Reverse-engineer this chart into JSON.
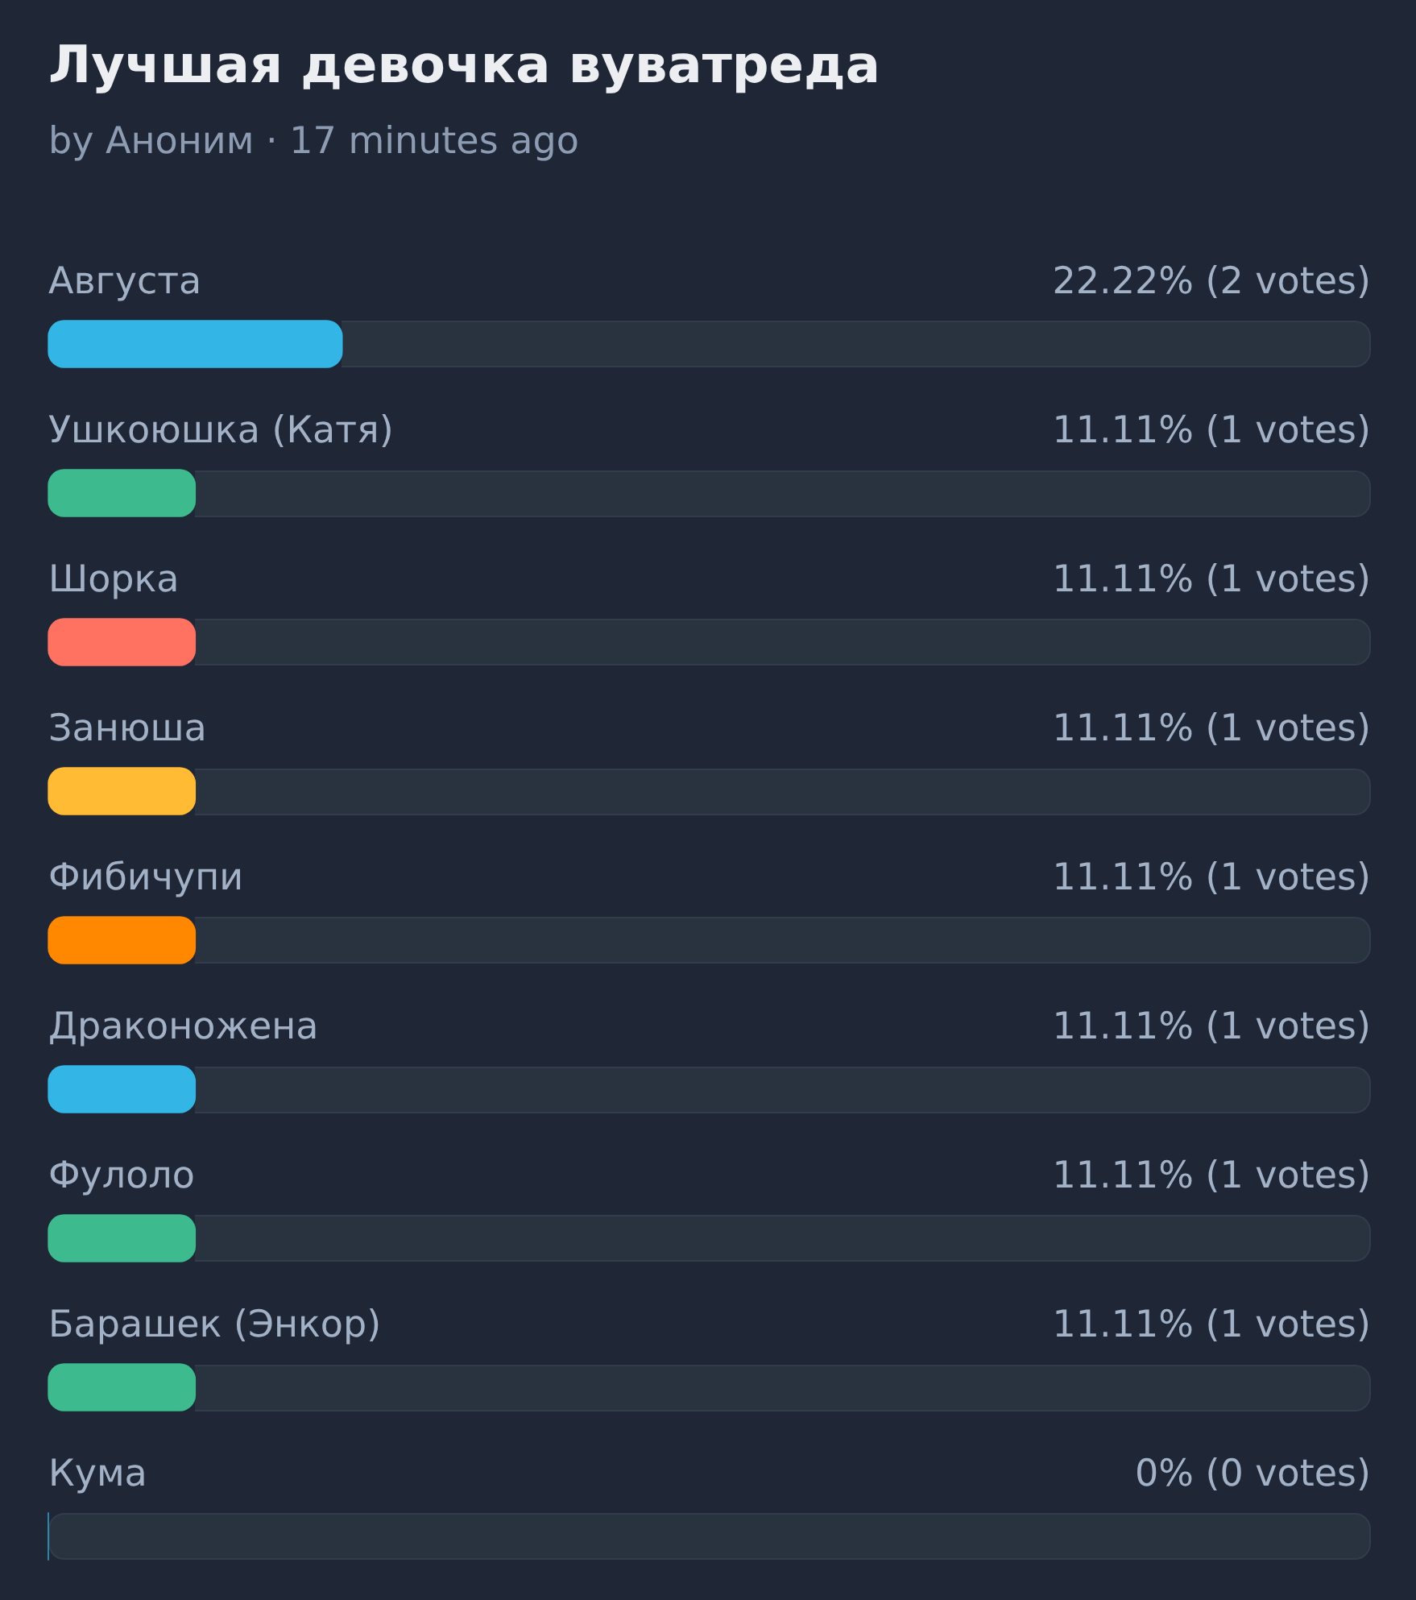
{
  "chart_data": {
    "type": "bar",
    "orientation": "horizontal",
    "title": "Лучшая девочка вуватреда",
    "subtitle": "by Аноним · 17 minutes ago",
    "categories": [
      "Августа",
      "Ушкоюшка (Катя)",
      "Шорка",
      "Занюша",
      "Фибичупи",
      "Драконожена",
      "Фулоло",
      "Барашек (Энкор)",
      "Кума"
    ],
    "values": [
      22.22,
      11.11,
      11.11,
      11.11,
      11.11,
      11.11,
      11.11,
      11.11,
      0
    ],
    "colors": [
      "#33b5e5",
      "#3dbb8f",
      "#ff7262",
      "#ffbb33",
      "#ff8800",
      "#33b5e5",
      "#3dbb8f",
      "#3dbb8f",
      "#33b5e5"
    ],
    "value_labels": [
      "22.22% (2 votes)",
      "11.11% (1 votes)",
      "11.11% (1 votes)",
      "11.11% (1 votes)",
      "11.11% (1 votes)",
      "11.11% (1 votes)",
      "11.11% (1 votes)",
      "11.11% (1 votes)",
      "0% (0 votes)"
    ],
    "xlim": [
      0,
      100
    ],
    "tick_labels": false
  }
}
